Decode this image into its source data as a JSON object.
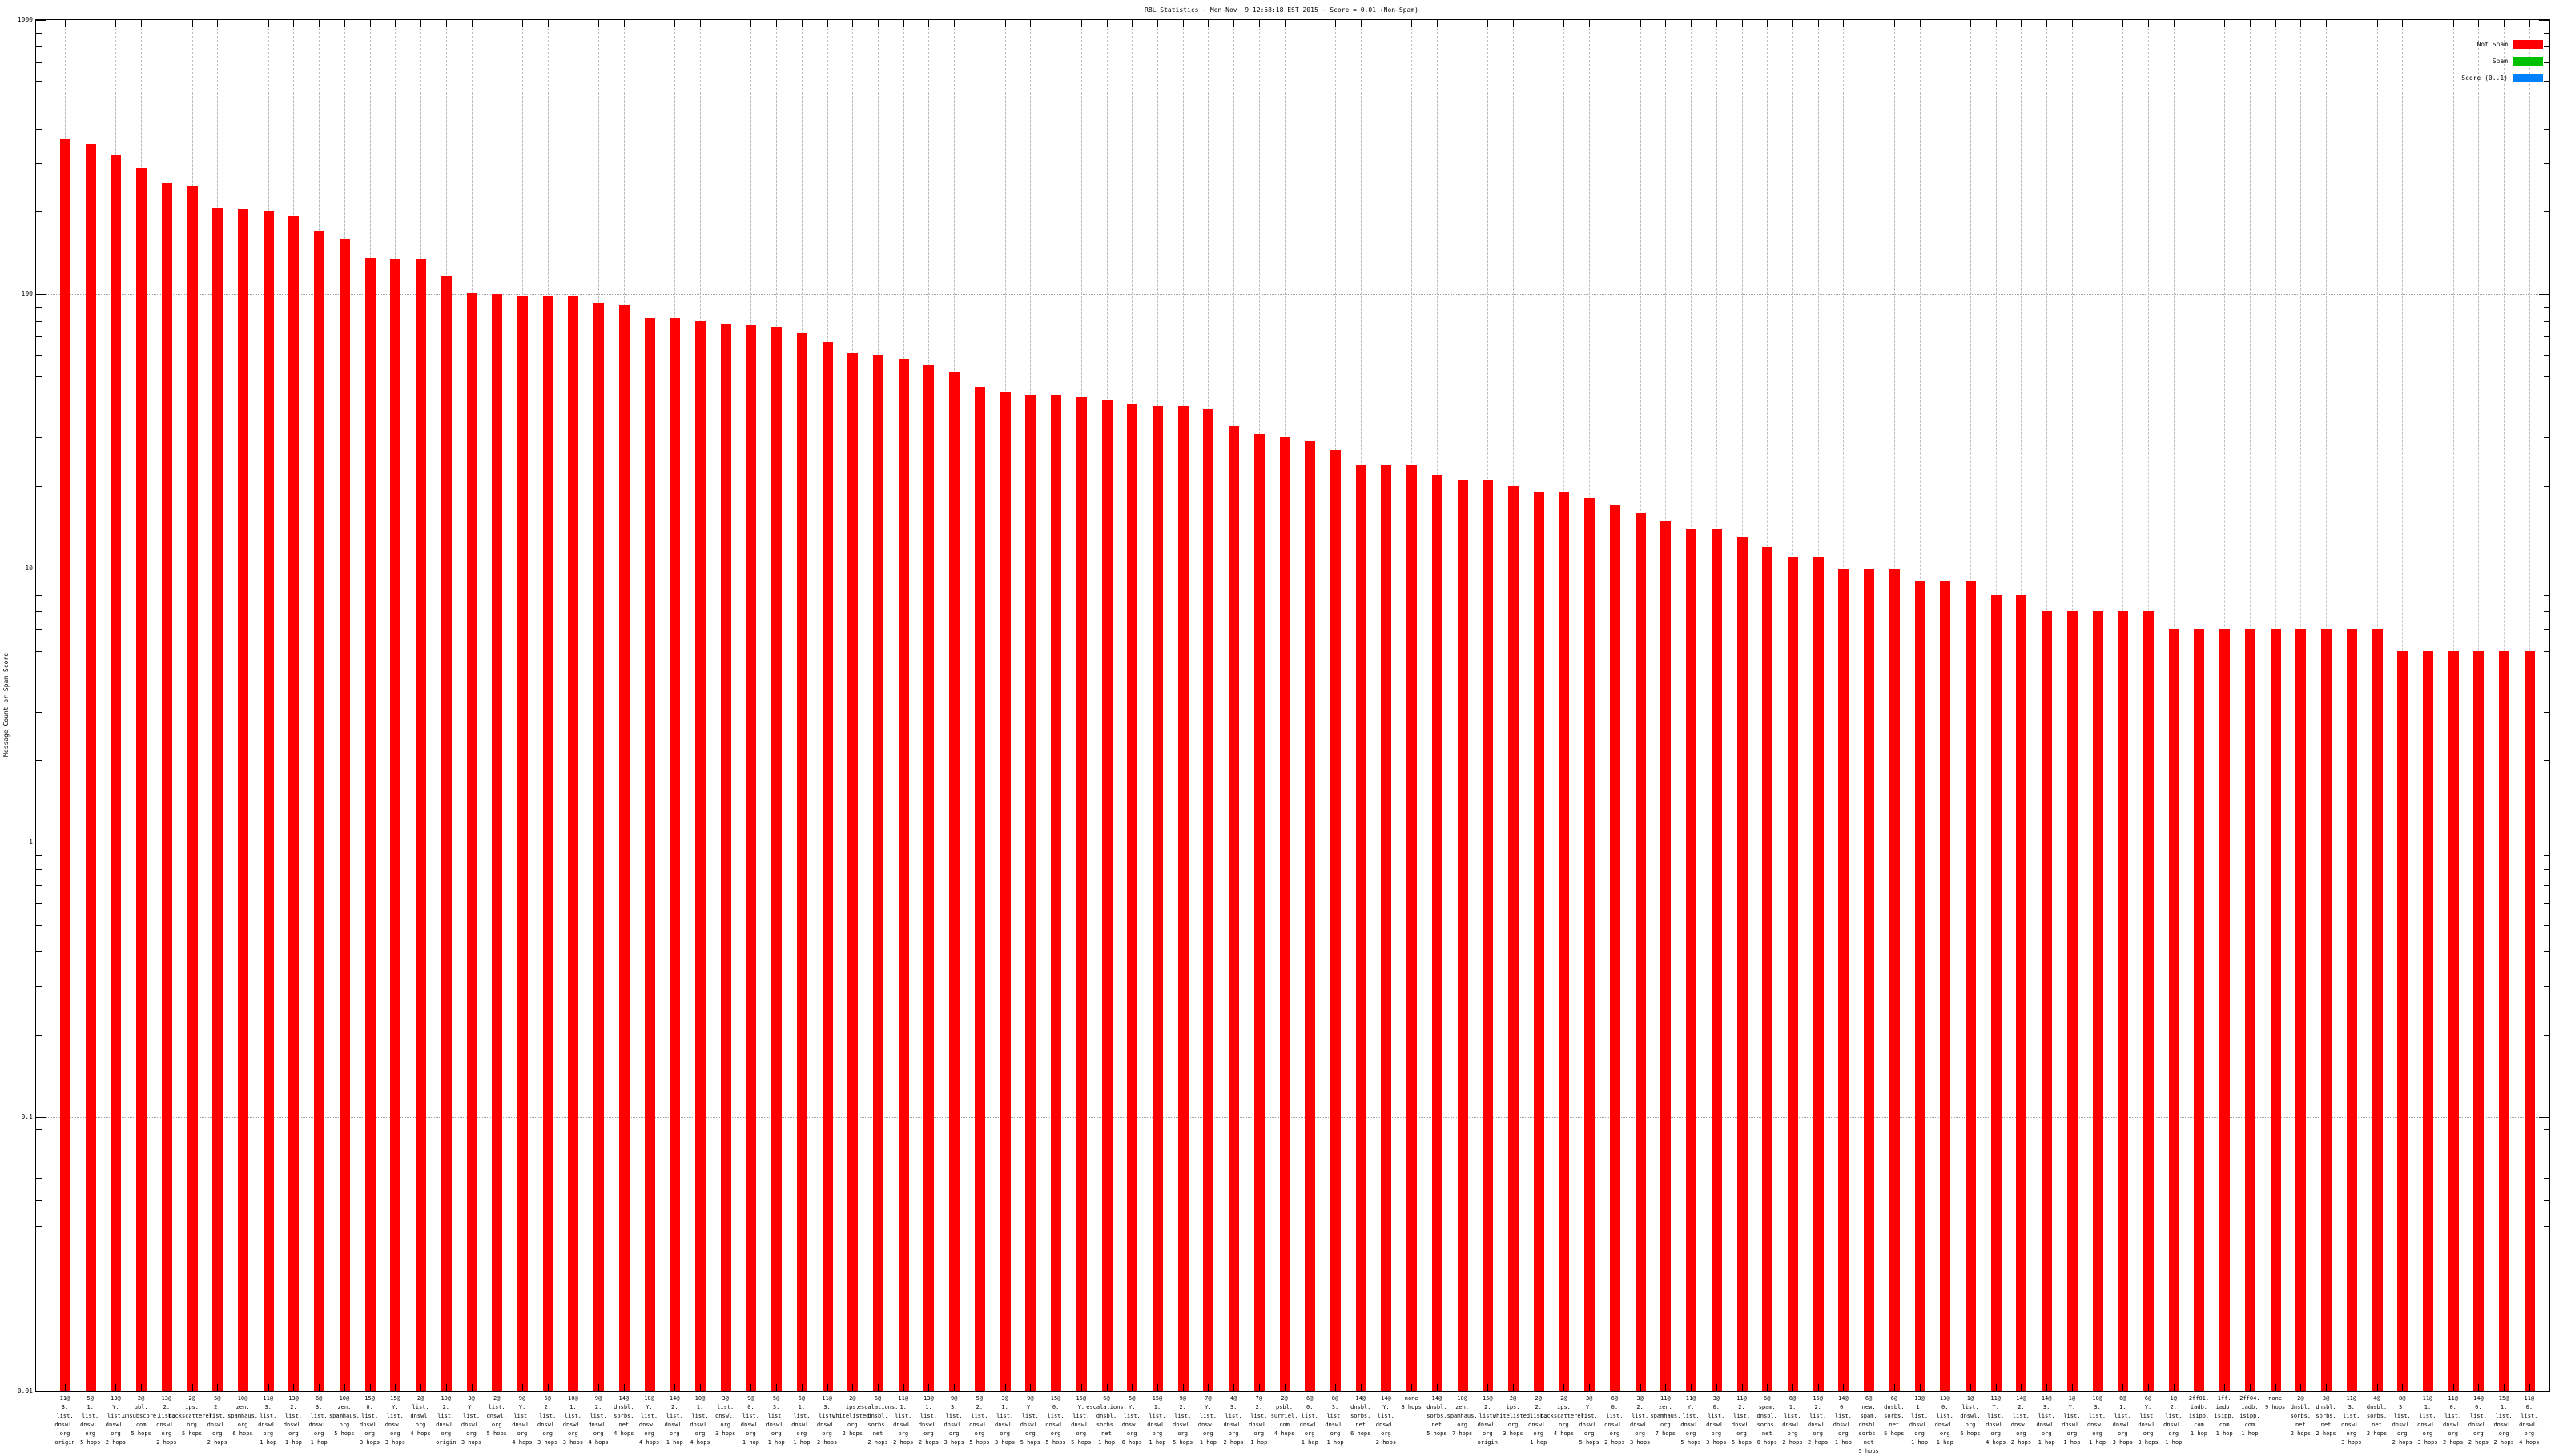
{
  "chart_data": {
    "type": "bar",
    "title": "RBL Statistics - Mon Nov  9 12:58:18 EST 2015 - Score = 0.01 (Non-Spam)",
    "ylabel": "Message Count or Spam Score",
    "yscale": "log",
    "ylim": [
      0.01,
      1000
    ],
    "ytics": [
      "1000",
      "100",
      "10",
      "1",
      "0.1",
      "0.01"
    ],
    "grid": true,
    "bar_color": "#ff0000",
    "legend_position": "top-right",
    "legend": [
      {
        "label": "Not Spam",
        "color": "#ff0000"
      },
      {
        "label": "Spam",
        "color": "#00c000"
      },
      {
        "label": "Score (0..1)",
        "color": "#0080ff"
      }
    ],
    "bars": [
      {
        "l": [
          "11@",
          "3.",
          "list.",
          "dnswl.",
          "org",
          "origin"
        ],
        "v": 367
      },
      {
        "l": [
          "5@",
          "1.",
          "list.",
          "dnswl.",
          "org",
          "5 hops"
        ],
        "v": 352
      },
      {
        "l": [
          "13@",
          "Y.",
          "list.",
          "dnswl.",
          "org",
          "2 hops"
        ],
        "v": 323
      },
      {
        "l": [
          "2@",
          "ubl.",
          "unsubscore.",
          "com",
          "5 hops"
        ],
        "v": 288
      },
      {
        "l": [
          "13@",
          "2.",
          "list.",
          "dnswl.",
          "org",
          "2 hops"
        ],
        "v": 253
      },
      {
        "l": [
          "2@",
          "ips.",
          "backscatterer.",
          "org",
          "5 hops"
        ],
        "v": 248
      },
      {
        "l": [
          "5@",
          "2.",
          "list.",
          "dnswl.",
          "org",
          "2 hops"
        ],
        "v": 206
      },
      {
        "l": [
          "10@",
          "zen.",
          "spamhaus.",
          "org",
          "6 hops"
        ],
        "v": 204
      },
      {
        "l": [
          "11@",
          "3.",
          "list.",
          "dnswl.",
          "org",
          "1 hop"
        ],
        "v": 200
      },
      {
        "l": [
          "13@",
          "2.",
          "list.",
          "dnswl.",
          "org",
          "1 hop"
        ],
        "v": 192
      },
      {
        "l": [
          "6@",
          "3.",
          "list.",
          "dnswl.",
          "org",
          "1 hop"
        ],
        "v": 170
      },
      {
        "l": [
          "10@",
          "zen.",
          "spamhaus.",
          "org",
          "5 hops"
        ],
        "v": 158
      },
      {
        "l": [
          "15@",
          "0.",
          "list.",
          "dnswl.",
          "org",
          "3 hops"
        ],
        "v": 136
      },
      {
        "l": [
          "15@",
          "Y.",
          "list.",
          "dnswl.",
          "org",
          "3 hops"
        ],
        "v": 135
      },
      {
        "l": [
          "2@",
          "list.",
          "dnswl.",
          "org",
          "4 hops"
        ],
        "v": 134
      },
      {
        "l": [
          "10@",
          "2.",
          "list.",
          "dnswl.",
          "org",
          "origin"
        ],
        "v": 117
      },
      {
        "l": [
          "3@",
          "Y.",
          "list.",
          "dnswl.",
          "org",
          "3 hops"
        ],
        "v": 101
      },
      {
        "l": [
          "2@",
          "list.",
          "dnswl.",
          "org",
          "5 hops"
        ],
        "v": 100
      },
      {
        "l": [
          "9@",
          "Y.",
          "list.",
          "dnswl.",
          "org",
          "4 hops"
        ],
        "v": 99
      },
      {
        "l": [
          "5@",
          "2.",
          "list.",
          "dnswl.",
          "org",
          "3 hops"
        ],
        "v": 98
      },
      {
        "l": [
          "10@",
          "1.",
          "list.",
          "dnswl.",
          "org",
          "3 hops"
        ],
        "v": 98
      },
      {
        "l": [
          "9@",
          "2.",
          "list.",
          "dnswl.",
          "org",
          "4 hops"
        ],
        "v": 93
      },
      {
        "l": [
          "14@",
          "dnsbl.",
          "sorbs.",
          "net",
          "4 hops"
        ],
        "v": 91
      },
      {
        "l": [
          "10@",
          "Y.",
          "list.",
          "dnswl.",
          "org",
          "4 hops"
        ],
        "v": 82
      },
      {
        "l": [
          "14@",
          "2.",
          "list.",
          "dnswl.",
          "org",
          "1 hop"
        ],
        "v": 82
      },
      {
        "l": [
          "10@",
          "1.",
          "list.",
          "dnswl.",
          "org",
          "4 hops"
        ],
        "v": 80
      },
      {
        "l": [
          "3@",
          "list.",
          "dnswl.",
          "org",
          "3 hops"
        ],
        "v": 78
      },
      {
        "l": [
          "9@",
          "0.",
          "list.",
          "dnswl.",
          "org",
          "1 hop"
        ],
        "v": 77
      },
      {
        "l": [
          "5@",
          "3.",
          "list.",
          "dnswl.",
          "org",
          "1 hop"
        ],
        "v": 76
      },
      {
        "l": [
          "6@",
          "1.",
          "list.",
          "dnswl.",
          "org",
          "1 hop"
        ],
        "v": 72
      },
      {
        "l": [
          "11@",
          "3.",
          "list.",
          "dnswl.",
          "org",
          "2 hops"
        ],
        "v": 67
      },
      {
        "l": [
          "2@",
          "ips.",
          "whitelisted.",
          "org",
          "2 hops"
        ],
        "v": 61
      },
      {
        "l": [
          "6@",
          "escalations.",
          "dnsbl.",
          "sorbs.",
          "net",
          "2 hops"
        ],
        "v": 60
      },
      {
        "l": [
          "11@",
          "1.",
          "list.",
          "dnswl.",
          "org",
          "2 hops"
        ],
        "v": 58
      },
      {
        "l": [
          "13@",
          "1.",
          "list.",
          "dnswl.",
          "org",
          "2 hops"
        ],
        "v": 55
      },
      {
        "l": [
          "9@",
          "3.",
          "list.",
          "dnswl.",
          "org",
          "3 hops"
        ],
        "v": 52
      },
      {
        "l": [
          "5@",
          "2.",
          "list.",
          "dnswl.",
          "org",
          "5 hops"
        ],
        "v": 46
      },
      {
        "l": [
          "3@",
          "1.",
          "list.",
          "dnswl.",
          "org",
          "3 hops"
        ],
        "v": 44
      },
      {
        "l": [
          "9@",
          "Y.",
          "list.",
          "dnswl.",
          "org",
          "5 hops"
        ],
        "v": 43
      },
      {
        "l": [
          "15@",
          "0.",
          "list.",
          "dnswl.",
          "org",
          "5 hops"
        ],
        "v": 43
      },
      {
        "l": [
          "15@",
          "Y.",
          "list.",
          "dnswl.",
          "org",
          "5 hops"
        ],
        "v": 42
      },
      {
        "l": [
          "6@",
          "escalations.",
          "dnsbl.",
          "sorbs.",
          "net",
          "1 hop"
        ],
        "v": 41
      },
      {
        "l": [
          "5@",
          "Y.",
          "list.",
          "dnswl.",
          "org",
          "6 hops"
        ],
        "v": 40
      },
      {
        "l": [
          "15@",
          "1.",
          "list.",
          "dnswl.",
          "org",
          "1 hop"
        ],
        "v": 39
      },
      {
        "l": [
          "9@",
          "2.",
          "list.",
          "dnswl.",
          "org",
          "5 hops"
        ],
        "v": 39
      },
      {
        "l": [
          "7@",
          "Y.",
          "list.",
          "dnswl.",
          "org",
          "1 hop"
        ],
        "v": 38
      },
      {
        "l": [
          "4@",
          "3.",
          "list.",
          "dnswl.",
          "org",
          "2 hops"
        ],
        "v": 33
      },
      {
        "l": [
          "7@",
          "2.",
          "list.",
          "dnswl.",
          "org",
          "1 hop"
        ],
        "v": 31
      },
      {
        "l": [
          "2@",
          "psbl.",
          "surriel.",
          "com",
          "4 hops"
        ],
        "v": 30
      },
      {
        "l": [
          "6@",
          "0.",
          "list.",
          "dnswl.",
          "org",
          "1 hop"
        ],
        "v": 29
      },
      {
        "l": [
          "8@",
          "3.",
          "list.",
          "dnswl.",
          "org",
          "1 hop"
        ],
        "v": 27
      },
      {
        "l": [
          "14@",
          "dnsbl.",
          "sorbs.",
          "net",
          "6 hops"
        ],
        "v": 24
      },
      {
        "l": [
          "14@",
          "Y.",
          "list.",
          "dnswl.",
          "org",
          "2 hops"
        ],
        "v": 24
      },
      {
        "l": [
          "none",
          "8 hops"
        ],
        "v": 24
      },
      {
        "l": [
          "14@",
          "dnsbl.",
          "sorbs.",
          "net",
          "5 hops"
        ],
        "v": 22
      },
      {
        "l": [
          "10@",
          "zen.",
          "spamhaus.",
          "org",
          "7 hops"
        ],
        "v": 21
      },
      {
        "l": [
          "15@",
          "2.",
          "list.",
          "dnswl.",
          "org",
          "origin"
        ],
        "v": 21
      },
      {
        "l": [
          "2@",
          "ips.",
          "whitelisted.",
          "org",
          "3 hops"
        ],
        "v": 20
      },
      {
        "l": [
          "2@",
          "2.",
          "list.",
          "dnswl.",
          "org",
          "1 hop"
        ],
        "v": 19
      },
      {
        "l": [
          "2@",
          "ips.",
          "backscatterer.",
          "org",
          "4 hops"
        ],
        "v": 19
      },
      {
        "l": [
          "3@",
          "Y.",
          "list.",
          "dnswl.",
          "org",
          "5 hops"
        ],
        "v": 18
      },
      {
        "l": [
          "6@",
          "0.",
          "list.",
          "dnswl.",
          "org",
          "2 hops"
        ],
        "v": 17
      },
      {
        "l": [
          "3@",
          "2.",
          "list.",
          "dnswl.",
          "org",
          "3 hops"
        ],
        "v": 16
      },
      {
        "l": [
          "11@",
          "zen.",
          "spamhaus.",
          "org",
          "7 hops"
        ],
        "v": 15
      },
      {
        "l": [
          "11@",
          "Y.",
          "list.",
          "dnswl.",
          "org",
          "5 hops"
        ],
        "v": 14
      },
      {
        "l": [
          "3@",
          "0.",
          "list.",
          "dnswl.",
          "org",
          "3 hops"
        ],
        "v": 14
      },
      {
        "l": [
          "11@",
          "2.",
          "list.",
          "dnswl.",
          "org",
          "5 hops"
        ],
        "v": 13
      },
      {
        "l": [
          "6@",
          "spam.",
          "dnsbl.",
          "sorbs.",
          "net",
          "6 hops"
        ],
        "v": 12
      },
      {
        "l": [
          "6@",
          "1.",
          "list.",
          "dnswl.",
          "org",
          "2 hops"
        ],
        "v": 11
      },
      {
        "l": [
          "15@",
          "2.",
          "list.",
          "dnswl.",
          "org",
          "2 hops"
        ],
        "v": 11
      },
      {
        "l": [
          "14@",
          "0.",
          "list.",
          "dnswl.",
          "org",
          "1 hop"
        ],
        "v": 10
      },
      {
        "l": [
          "6@",
          "new.",
          "spam.",
          "dnsbl.",
          "sorbs.",
          "net",
          "5 hops"
        ],
        "v": 10
      },
      {
        "l": [
          "6@",
          "dnsbl.",
          "sorbs.",
          "net",
          "5 hops"
        ],
        "v": 10
      },
      {
        "l": [
          "13@",
          "1.",
          "list.",
          "dnswl.",
          "org",
          "1 hop"
        ],
        "v": 9
      },
      {
        "l": [
          "13@",
          "0.",
          "list.",
          "dnswl.",
          "org",
          "1 hop"
        ],
        "v": 9
      },
      {
        "l": [
          "1@",
          "list.",
          "dnswl.",
          "org",
          "6 hops"
        ],
        "v": 9
      },
      {
        "l": [
          "11@",
          "Y.",
          "list.",
          "dnswl.",
          "org",
          "4 hops"
        ],
        "v": 8
      },
      {
        "l": [
          "14@",
          "2.",
          "list.",
          "dnswl.",
          "org",
          "2 hops"
        ],
        "v": 8
      },
      {
        "l": [
          "14@",
          "3.",
          "list.",
          "dnswl.",
          "org",
          "1 hop"
        ],
        "v": 7
      },
      {
        "l": [
          "1@",
          "Y.",
          "list.",
          "dnswl.",
          "org",
          "1 hop"
        ],
        "v": 7
      },
      {
        "l": [
          "10@",
          "3.",
          "list.",
          "dnswl.",
          "org",
          "1 hop"
        ],
        "v": 7
      },
      {
        "l": [
          "6@",
          "1.",
          "list.",
          "dnswl.",
          "org",
          "3 hops"
        ],
        "v": 7
      },
      {
        "l": [
          "6@",
          "Y.",
          "list.",
          "dnswl.",
          "org",
          "3 hops"
        ],
        "v": 7
      },
      {
        "l": [
          "1@",
          "2.",
          "list.",
          "dnswl.",
          "org",
          "1 hop"
        ],
        "v": 6
      },
      {
        "l": [
          "2ff01.",
          "iadb.",
          "isipp.",
          "com",
          "1 hop"
        ],
        "v": 6
      },
      {
        "l": [
          "1ff.",
          "iadb.",
          "isipp.",
          "com",
          "1 hop"
        ],
        "v": 6
      },
      {
        "l": [
          "2ff04.",
          "iadb.",
          "isipp.",
          "com",
          "1 hop"
        ],
        "v": 6
      },
      {
        "l": [
          "none",
          "9 hops"
        ],
        "v": 6
      },
      {
        "l": [
          "2@",
          "dnsbl.",
          "sorbs.",
          "net",
          "2 hops"
        ],
        "v": 6
      },
      {
        "l": [
          "3@",
          "dnsbl.",
          "sorbs.",
          "net",
          "2 hops"
        ],
        "v": 6
      },
      {
        "l": [
          "11@",
          "3.",
          "list.",
          "dnswl.",
          "org",
          "3 hops"
        ],
        "v": 6
      },
      {
        "l": [
          "4@",
          "dnsbl.",
          "sorbs.",
          "net",
          "2 hops"
        ],
        "v": 6
      },
      {
        "l": [
          "8@",
          "3.",
          "list.",
          "dnswl.",
          "org",
          "2 hops"
        ],
        "v": 5
      },
      {
        "l": [
          "11@",
          "1.",
          "list.",
          "dnswl.",
          "org",
          "3 hops"
        ],
        "v": 5
      },
      {
        "l": [
          "11@",
          "0.",
          "list.",
          "dnswl.",
          "org",
          "2 hops"
        ],
        "v": 5
      },
      {
        "l": [
          "14@",
          "0.",
          "list.",
          "dnswl.",
          "org",
          "2 hops"
        ],
        "v": 5
      },
      {
        "l": [
          "15@",
          "1.",
          "list.",
          "dnswl.",
          "org",
          "2 hops"
        ],
        "v": 5
      },
      {
        "l": [
          "11@",
          "0.",
          "list.",
          "dnswl.",
          "org",
          "4 hops"
        ],
        "v": 5
      }
    ]
  }
}
